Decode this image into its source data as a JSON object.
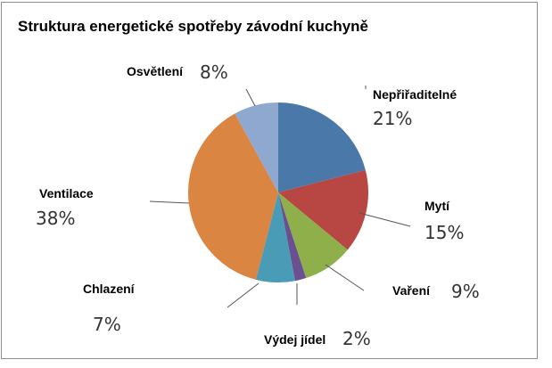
{
  "chart_data": {
    "type": "pie",
    "title": "Struktura energetické spotřeby závodní kuchyně",
    "slices": [
      {
        "label": "Nepřiřaditelné",
        "value": 21,
        "value_text": "21%",
        "color": "#4a78a8"
      },
      {
        "label": "Mytí",
        "value": 15,
        "value_text": "15%",
        "color": "#b84744"
      },
      {
        "label": "Vaření",
        "value": 9,
        "value_text": "9%",
        "color": "#8faf4b"
      },
      {
        "label": "Výdej jídel",
        "value": 2,
        "value_text": "2%",
        "color": "#6a5090"
      },
      {
        "label": "Chlazení",
        "value": 7,
        "value_text": "7%",
        "color": "#4a9bb5"
      },
      {
        "label": "Ventilace",
        "value": 38,
        "value_text": "38%",
        "color": "#da8541"
      },
      {
        "label": "Osvětlení",
        "value": 8,
        "value_text": "8%",
        "color": "#8fa8d0"
      }
    ],
    "start_angle_deg": 0,
    "direction": "clockwise"
  }
}
